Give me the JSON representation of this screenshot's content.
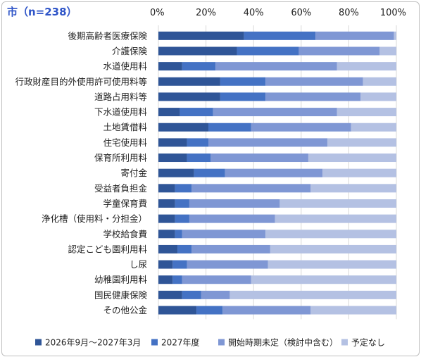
{
  "colors": {
    "title": "#2f55c8",
    "series": [
      "#2f5597",
      "#4472c4",
      "#7f97d4",
      "#b4c1e3"
    ],
    "grid": "#d9d9d9"
  },
  "chart_data": {
    "type": "bar",
    "orientation": "horizontal",
    "stacked": "percent",
    "title": "市（n=238）",
    "xlim": [
      0,
      100
    ],
    "x_ticks": [
      "0%",
      "20%",
      "40%",
      "60%",
      "80%",
      "100%"
    ],
    "grid": true,
    "legend_position": "bottom",
    "categories": [
      "後期高齢者医療保険",
      "介護保険",
      "水道使用料",
      "行政財産目的外使用許可使用料等",
      "道路占用料等",
      "下水道使用料",
      "土地賃借料",
      "住宅使用料",
      "保育所利用料",
      "寄付金",
      "受益者負担金",
      "学童保育費",
      "浄化槽（使用料・分担金）",
      "学校給食費",
      "認定こども園利用料",
      "し尿",
      "幼稚園利用料",
      "国民健康保険",
      "その他公金"
    ],
    "series": [
      {
        "name": "2026年9月～2027年3月",
        "values": [
          36,
          33,
          10,
          26,
          26,
          9,
          21,
          12,
          12,
          15,
          7,
          7,
          7,
          7,
          8,
          6,
          6,
          10,
          16
        ]
      },
      {
        "name": "2027年度",
        "values": [
          30,
          26,
          14,
          19,
          19,
          14,
          18,
          9,
          10,
          13,
          7,
          6,
          6,
          3,
          6,
          6,
          4,
          8,
          11
        ]
      },
      {
        "name": "開始時期未定（検討中含む）",
        "values": [
          33,
          34,
          51,
          41,
          40,
          52,
          42,
          50,
          41,
          41,
          50,
          38,
          36,
          35,
          33,
          34,
          29,
          12,
          37
        ]
      },
      {
        "name": "予定なし",
        "values": [
          1,
          7,
          25,
          14,
          15,
          25,
          19,
          29,
          37,
          31,
          36,
          49,
          51,
          55,
          53,
          54,
          61,
          70,
          36
        ]
      }
    ]
  }
}
